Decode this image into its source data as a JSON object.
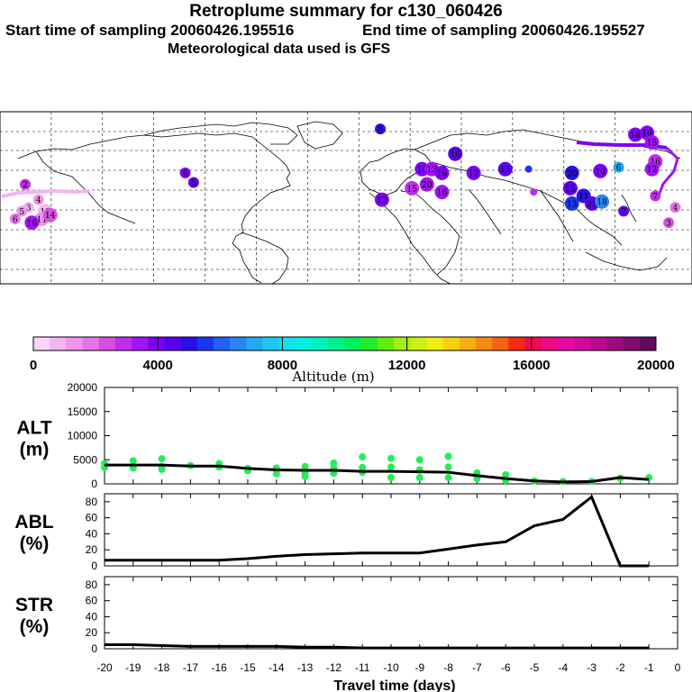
{
  "header": {
    "title": "Retroplume summary for c130_060426",
    "start_label": "Start time of sampling 20060426.195516",
    "end_label": "End time of sampling 20060426.195527",
    "met_label": "Meteorological data used is GFS"
  },
  "colorbar": {
    "label": "Altitude (m)",
    "ticks": [
      "0",
      "4000",
      "8000",
      "12000",
      "16000",
      "20000"
    ],
    "colors": [
      "#f7d6f7",
      "#f2b5f2",
      "#ee95ee",
      "#e676e6",
      "#d650e0",
      "#c02eea",
      "#9f14f2",
      "#7f00f7",
      "#5a00f0",
      "#2a10e8",
      "#1b36ee",
      "#2060f2",
      "#2a85f4",
      "#22a9f4",
      "#1cc8f2",
      "#10e2ee",
      "#00f0dd",
      "#00f0bb",
      "#00f088",
      "#00ee5a",
      "#20ec2a",
      "#60ee10",
      "#9ef010",
      "#ccf010",
      "#eeee10",
      "#f7d010",
      "#f7ae12",
      "#f78a12",
      "#f76214",
      "#f72a14",
      "#ee0a50",
      "#f0078a",
      "#e60aa4",
      "#d20a9c",
      "#b80a8e",
      "#a00a80",
      "#7f0a70",
      "#640a5c"
    ]
  },
  "chart_data": [
    {
      "type": "line",
      "panel": "ALT",
      "ylabel": "ALT (m)",
      "ylim": [
        0,
        20000
      ],
      "yticks": [
        "20000",
        "15000",
        "10000",
        "5000",
        "0"
      ],
      "x": [
        -20,
        -19,
        -18,
        -17,
        -16,
        -15,
        -14,
        -13,
        -12,
        -11,
        -10,
        -9,
        -8,
        -7,
        -6,
        -5,
        -4,
        -3,
        -2,
        -1
      ],
      "values": [
        3900,
        3900,
        3900,
        3700,
        3700,
        3200,
        2900,
        2800,
        2800,
        2600,
        2600,
        2500,
        2400,
        1700,
        1100,
        600,
        400,
        500,
        1300,
        900
      ],
      "scatter": [
        {
          "x": -20,
          "y": 4200
        },
        {
          "x": -20,
          "y": 3400
        },
        {
          "x": -19,
          "y": 4800
        },
        {
          "x": -19,
          "y": 3300
        },
        {
          "x": -18,
          "y": 5200
        },
        {
          "x": -18,
          "y": 3600
        },
        {
          "x": -18,
          "y": 3000
        },
        {
          "x": -17,
          "y": 3800
        },
        {
          "x": -16,
          "y": 4200
        },
        {
          "x": -16,
          "y": 3500
        },
        {
          "x": -15,
          "y": 3200
        },
        {
          "x": -15,
          "y": 2700
        },
        {
          "x": -14,
          "y": 3300
        },
        {
          "x": -14,
          "y": 2100
        },
        {
          "x": -13,
          "y": 3600
        },
        {
          "x": -13,
          "y": 2200
        },
        {
          "x": -13,
          "y": 1500
        },
        {
          "x": -12,
          "y": 4300
        },
        {
          "x": -12,
          "y": 3300
        },
        {
          "x": -12,
          "y": 2200
        },
        {
          "x": -11,
          "y": 5600
        },
        {
          "x": -11,
          "y": 3400
        },
        {
          "x": -11,
          "y": 2400
        },
        {
          "x": -10,
          "y": 5300
        },
        {
          "x": -10,
          "y": 3500
        },
        {
          "x": -10,
          "y": 1300
        },
        {
          "x": -9,
          "y": 5000
        },
        {
          "x": -9,
          "y": 2900
        },
        {
          "x": -9,
          "y": 1300
        },
        {
          "x": -8,
          "y": 5700
        },
        {
          "x": -8,
          "y": 3500
        },
        {
          "x": -8,
          "y": 1300
        },
        {
          "x": -7,
          "y": 2300
        },
        {
          "x": -7,
          "y": 1100
        },
        {
          "x": -6,
          "y": 1900
        },
        {
          "x": -6,
          "y": 700
        },
        {
          "x": -5,
          "y": 600
        },
        {
          "x": -4,
          "y": 500
        },
        {
          "x": -3,
          "y": 500
        },
        {
          "x": -2,
          "y": 1200
        },
        {
          "x": -1,
          "y": 1300
        }
      ]
    },
    {
      "type": "line",
      "panel": "ABL",
      "ylabel": "ABL (%)",
      "ylim": [
        0,
        90
      ],
      "yticks": [
        "80",
        "60",
        "40",
        "20",
        "0"
      ],
      "x": [
        -20,
        -19,
        -18,
        -17,
        -16,
        -15,
        -14,
        -13,
        -12,
        -11,
        -10,
        -9,
        -8,
        -7,
        -6,
        -5,
        -4,
        -3,
        -2,
        -1
      ],
      "values": [
        7,
        7,
        7,
        7,
        7,
        9,
        12,
        14,
        15,
        16,
        16,
        16,
        21,
        26,
        30,
        50,
        58,
        86,
        0,
        0
      ]
    },
    {
      "type": "line",
      "panel": "STR",
      "ylabel": "STR (%)",
      "ylim": [
        0,
        90
      ],
      "yticks": [
        "80",
        "60",
        "40",
        "20",
        "0"
      ],
      "x": [
        -20,
        -19,
        -18,
        -17,
        -16,
        -15,
        -14,
        -13,
        -12,
        -11,
        -10,
        -9,
        -8,
        -7,
        -6,
        -5,
        -4,
        -3,
        -2,
        -1
      ],
      "values": [
        5,
        5,
        4,
        3,
        3,
        3,
        3,
        2,
        2,
        1,
        1,
        1,
        1,
        1,
        1,
        1,
        1,
        1,
        1,
        1
      ]
    }
  ],
  "xaxis": {
    "label": "Travel time (days)",
    "ticks": [
      "-20",
      "-19",
      "-18",
      "-17",
      "-16",
      "-15",
      "-14",
      "-13",
      "-12",
      "-11",
      "-10",
      "-9",
      "-8",
      "-7",
      "-6",
      "-5",
      "-4",
      "-3",
      "-2",
      "-1",
      "0"
    ]
  },
  "map": {
    "markers": [
      {
        "lon": -180,
        "lat": 42,
        "label": "2",
        "color": "#c02eea"
      },
      {
        "lon": -178,
        "lat": 30,
        "label": "3",
        "color": "#f2b5f2"
      },
      {
        "lon": -172,
        "lat": 34,
        "label": "4",
        "color": "#ee95ee"
      },
      {
        "lon": -168,
        "lat": 28,
        "label": "13",
        "color": "#f2b5f2"
      },
      {
        "lon": -170,
        "lat": 24,
        "label": "11",
        "color": "#ee95ee"
      },
      {
        "lon": -165,
        "lat": 26,
        "label": "14",
        "color": "#d650e0"
      },
      {
        "lon": -176,
        "lat": 22,
        "label": "16",
        "color": "#9f14f2"
      },
      {
        "lon": -182,
        "lat": 28,
        "label": "5",
        "color": "#ee95ee"
      },
      {
        "lon": -186,
        "lat": 24,
        "label": "6",
        "color": "#e676e6"
      },
      {
        "lon": -84,
        "lat": 48,
        "label": "6",
        "color": "#7f00f7"
      },
      {
        "lon": -79,
        "lat": 43,
        "label": "5",
        "color": "#5a00f0"
      },
      {
        "lon": 33,
        "lat": 71,
        "label": "8",
        "color": "#2a10e8"
      },
      {
        "lon": 78,
        "lat": 58,
        "label": "16",
        "color": "#5a00f0"
      },
      {
        "lon": 58,
        "lat": 50,
        "label": "10",
        "color": "#7f00f7"
      },
      {
        "lon": 64,
        "lat": 50,
        "label": "13",
        "color": "#9f14f2"
      },
      {
        "lon": 70,
        "lat": 48,
        "label": "16",
        "color": "#7f00f7"
      },
      {
        "lon": 52,
        "lat": 40,
        "label": "15",
        "color": "#c02eea"
      },
      {
        "lon": 61,
        "lat": 42,
        "label": "20",
        "color": "#9f14f2"
      },
      {
        "lon": 70,
        "lat": 38,
        "label": "16",
        "color": "#9f14f2"
      },
      {
        "lon": 34,
        "lat": 34,
        "label": "12",
        "color": "#7f00f7"
      },
      {
        "lon": 89,
        "lat": 48,
        "label": "12",
        "color": "#7f00f7"
      },
      {
        "lon": 108,
        "lat": 50,
        "label": "11",
        "color": "#5a00f0"
      },
      {
        "lon": 122,
        "lat": 50,
        "label": "",
        "color": "#1b36ee"
      },
      {
        "lon": 125,
        "lat": 38,
        "label": "",
        "color": "#c02eea"
      },
      {
        "lon": 148,
        "lat": 48,
        "label": "20",
        "color": "#2a10e8"
      },
      {
        "lon": 147,
        "lat": 40,
        "label": "15",
        "color": "#5a00f0"
      },
      {
        "lon": 148,
        "lat": 32,
        "label": "13",
        "color": "#1b36ee"
      },
      {
        "lon": 155,
        "lat": 36,
        "label": "11",
        "color": "#2a10e8"
      },
      {
        "lon": 160,
        "lat": 32,
        "label": "21",
        "color": "#5a00f0"
      },
      {
        "lon": 166,
        "lat": 33,
        "label": "18",
        "color": "#2a85f4"
      },
      {
        "lon": 165,
        "lat": 49,
        "label": "10",
        "color": "#7f00f7"
      },
      {
        "lon": 176,
        "lat": 51,
        "label": "6",
        "color": "#22a9f4"
      },
      {
        "lon": 179,
        "lat": 28,
        "label": "7",
        "color": "#5a00f0"
      },
      {
        "lon": 186,
        "lat": 68,
        "label": "18",
        "color": "#7f00f7"
      },
      {
        "lon": 193,
        "lat": 69,
        "label": "16",
        "color": "#7f00f7"
      },
      {
        "lon": 196,
        "lat": 64,
        "label": "15",
        "color": "#9f14f2"
      },
      {
        "lon": 198,
        "lat": 54,
        "label": "16",
        "color": "#c02eea"
      },
      {
        "lon": 196,
        "lat": 50,
        "label": "12",
        "color": "#9f14f2"
      },
      {
        "lon": 198,
        "lat": 36,
        "label": "7",
        "color": "#c02eea"
      },
      {
        "lon": 210,
        "lat": 30,
        "label": "4",
        "color": "#e676e6"
      },
      {
        "lon": 206,
        "lat": 22,
        "label": "3",
        "color": "#d650e0"
      }
    ]
  }
}
